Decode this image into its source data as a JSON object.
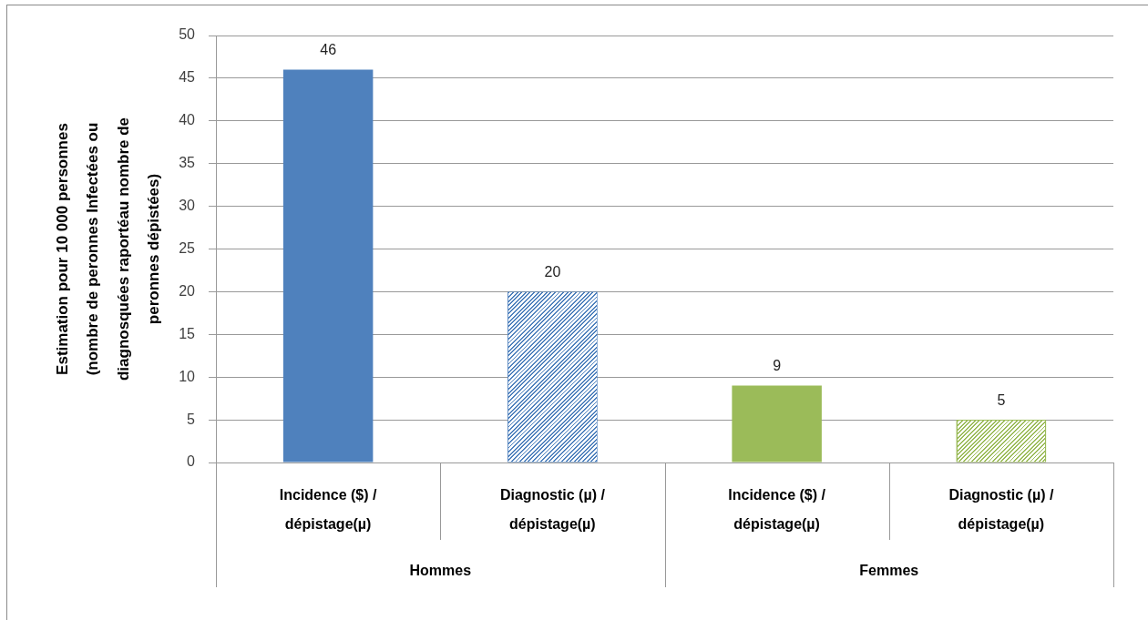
{
  "chart_data": {
    "type": "bar",
    "ylabel": "Estimation pour 10 000 personnes (nombre de peronnes Infectées ou diagnosquées raportéau nombre de peronnes dépistées)",
    "categories": [
      "Incidence ($) / dépistage(µ)",
      "Diagnostic (µ) / dépistage(µ)",
      "Incidence ($) / dépistage(µ)",
      "Diagnostic (µ) / dépistage(µ)"
    ],
    "values": [
      46,
      20,
      9,
      5
    ],
    "colors": [
      "#4f81bd",
      "#4f81bd",
      "#9bbb59",
      "#9bbb59"
    ],
    "ylim": [
      0,
      50
    ],
    "yticks": [
      0,
      5,
      10,
      15,
      20,
      25,
      30,
      35,
      40,
      45,
      50
    ],
    "grid": "y",
    "data_labels": true,
    "annotations": [
      "Hommes",
      "Femmes"
    ]
  }
}
